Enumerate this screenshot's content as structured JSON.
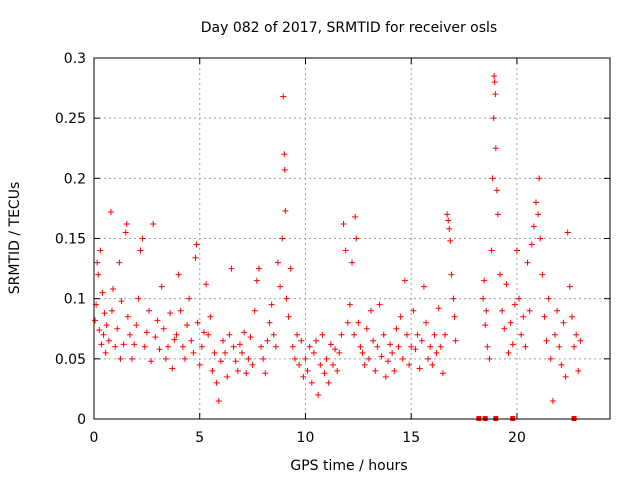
{
  "chart_data": {
    "type": "scatter",
    "title": "Day 082 of 2017, SRMTID for receiver osls",
    "xlabel": "GPS time / hours",
    "ylabel": "SRMTID / TECUs",
    "xlim": [
      0,
      24.4
    ],
    "ylim": [
      0,
      0.3
    ],
    "xticks": [
      0,
      5,
      10,
      15,
      20
    ],
    "xtick_labels": [
      "0",
      "5",
      "10",
      "15",
      "20"
    ],
    "yticks": [
      0,
      0.05,
      0.1,
      0.15,
      0.2,
      0.25,
      0.3
    ],
    "ytick_labels": [
      "0",
      "0.05",
      "0.1",
      "0.15",
      "0.2",
      "0.25",
      "0.3"
    ],
    "grid": true,
    "marker": "+",
    "color": "#ff0000",
    "gap_markers_x": [
      18.2,
      18.5,
      19.0,
      19.8,
      22.7
    ],
    "series": [
      {
        "name": "SRMTID",
        "points": [
          [
            0.05,
            0.082
          ],
          [
            0.1,
            0.095
          ],
          [
            0.15,
            0.13
          ],
          [
            0.2,
            0.12
          ],
          [
            0.25,
            0.074
          ],
          [
            0.3,
            0.14
          ],
          [
            0.35,
            0.062
          ],
          [
            0.4,
            0.105
          ],
          [
            0.45,
            0.07
          ],
          [
            0.5,
            0.088
          ],
          [
            0.55,
            0.055
          ],
          [
            0.6,
            0.078
          ],
          [
            0.7,
            0.065
          ],
          [
            0.8,
            0.172
          ],
          [
            0.85,
            0.09
          ],
          [
            0.9,
            0.108
          ],
          [
            1.0,
            0.06
          ],
          [
            1.1,
            0.075
          ],
          [
            1.2,
            0.13
          ],
          [
            1.25,
            0.05
          ],
          [
            1.3,
            0.098
          ],
          [
            1.4,
            0.062
          ],
          [
            1.5,
            0.155
          ],
          [
            1.55,
            0.162
          ],
          [
            1.6,
            0.085
          ],
          [
            1.7,
            0.07
          ],
          [
            1.8,
            0.05
          ],
          [
            1.9,
            0.062
          ],
          [
            2.0,
            0.078
          ],
          [
            2.1,
            0.1
          ],
          [
            2.2,
            0.14
          ],
          [
            2.3,
            0.15
          ],
          [
            2.4,
            0.06
          ],
          [
            2.5,
            0.072
          ],
          [
            2.6,
            0.09
          ],
          [
            2.7,
            0.048
          ],
          [
            2.8,
            0.162
          ],
          [
            2.9,
            0.068
          ],
          [
            3.0,
            0.082
          ],
          [
            3.1,
            0.058
          ],
          [
            3.2,
            0.11
          ],
          [
            3.3,
            0.075
          ],
          [
            3.4,
            0.05
          ],
          [
            3.5,
            0.06
          ],
          [
            3.6,
            0.088
          ],
          [
            3.7,
            0.042
          ],
          [
            3.8,
            0.066
          ],
          [
            3.9,
            0.07
          ],
          [
            4.0,
            0.12
          ],
          [
            4.1,
            0.09
          ],
          [
            4.2,
            0.06
          ],
          [
            4.3,
            0.05
          ],
          [
            4.4,
            0.078
          ],
          [
            4.5,
            0.1
          ],
          [
            4.6,
            0.065
          ],
          [
            4.7,
            0.055
          ],
          [
            4.8,
            0.134
          ],
          [
            4.85,
            0.145
          ],
          [
            4.9,
            0.08
          ],
          [
            5.0,
            0.045
          ],
          [
            5.1,
            0.06
          ],
          [
            5.2,
            0.072
          ],
          [
            5.3,
            0.112
          ],
          [
            5.4,
            0.07
          ],
          [
            5.5,
            0.085
          ],
          [
            5.6,
            0.04
          ],
          [
            5.7,
            0.055
          ],
          [
            5.8,
            0.03
          ],
          [
            5.9,
            0.015
          ],
          [
            6.0,
            0.048
          ],
          [
            6.1,
            0.065
          ],
          [
            6.2,
            0.055
          ],
          [
            6.3,
            0.035
          ],
          [
            6.4,
            0.07
          ],
          [
            6.5,
            0.125
          ],
          [
            6.6,
            0.06
          ],
          [
            6.7,
            0.048
          ],
          [
            6.8,
            0.04
          ],
          [
            6.9,
            0.062
          ],
          [
            7.0,
            0.055
          ],
          [
            7.1,
            0.072
          ],
          [
            7.2,
            0.038
          ],
          [
            7.3,
            0.05
          ],
          [
            7.4,
            0.068
          ],
          [
            7.5,
            0.045
          ],
          [
            7.6,
            0.09
          ],
          [
            7.7,
            0.115
          ],
          [
            7.8,
            0.125
          ],
          [
            7.9,
            0.06
          ],
          [
            8.0,
            0.05
          ],
          [
            8.1,
            0.038
          ],
          [
            8.2,
            0.065
          ],
          [
            8.3,
            0.08
          ],
          [
            8.4,
            0.095
          ],
          [
            8.5,
            0.07
          ],
          [
            8.6,
            0.06
          ],
          [
            8.7,
            0.13
          ],
          [
            8.8,
            0.11
          ],
          [
            8.9,
            0.15
          ],
          [
            8.95,
            0.268
          ],
          [
            9.0,
            0.22
          ],
          [
            9.02,
            0.207
          ],
          [
            9.05,
            0.173
          ],
          [
            9.1,
            0.1
          ],
          [
            9.2,
            0.085
          ],
          [
            9.3,
            0.125
          ],
          [
            9.4,
            0.06
          ],
          [
            9.5,
            0.05
          ],
          [
            9.6,
            0.07
          ],
          [
            9.7,
            0.045
          ],
          [
            9.8,
            0.065
          ],
          [
            9.9,
            0.035
          ],
          [
            10.0,
            0.05
          ],
          [
            10.1,
            0.04
          ],
          [
            10.2,
            0.06
          ],
          [
            10.3,
            0.03
          ],
          [
            10.4,
            0.055
          ],
          [
            10.5,
            0.065
          ],
          [
            10.6,
            0.02
          ],
          [
            10.7,
            0.045
          ],
          [
            10.8,
            0.07
          ],
          [
            10.9,
            0.038
          ],
          [
            11.0,
            0.05
          ],
          [
            11.1,
            0.03
          ],
          [
            11.2,
            0.062
          ],
          [
            11.3,
            0.045
          ],
          [
            11.4,
            0.058
          ],
          [
            11.5,
            0.04
          ],
          [
            11.6,
            0.055
          ],
          [
            11.7,
            0.07
          ],
          [
            11.8,
            0.162
          ],
          [
            11.9,
            0.14
          ],
          [
            12.0,
            0.08
          ],
          [
            12.1,
            0.095
          ],
          [
            12.2,
            0.13
          ],
          [
            12.3,
            0.07
          ],
          [
            12.35,
            0.168
          ],
          [
            12.4,
            0.15
          ],
          [
            12.5,
            0.08
          ],
          [
            12.6,
            0.06
          ],
          [
            12.7,
            0.055
          ],
          [
            12.8,
            0.045
          ],
          [
            12.9,
            0.075
          ],
          [
            13.0,
            0.05
          ],
          [
            13.1,
            0.09
          ],
          [
            13.2,
            0.065
          ],
          [
            13.3,
            0.04
          ],
          [
            13.4,
            0.06
          ],
          [
            13.5,
            0.095
          ],
          [
            13.6,
            0.052
          ],
          [
            13.7,
            0.07
          ],
          [
            13.8,
            0.035
          ],
          [
            13.9,
            0.048
          ],
          [
            14.0,
            0.062
          ],
          [
            14.1,
            0.055
          ],
          [
            14.2,
            0.04
          ],
          [
            14.3,
            0.075
          ],
          [
            14.4,
            0.06
          ],
          [
            14.5,
            0.085
          ],
          [
            14.6,
            0.05
          ],
          [
            14.7,
            0.115
          ],
          [
            14.8,
            0.07
          ],
          [
            14.9,
            0.045
          ],
          [
            15.0,
            0.06
          ],
          [
            15.1,
            0.09
          ],
          [
            15.2,
            0.058
          ],
          [
            15.3,
            0.07
          ],
          [
            15.4,
            0.042
          ],
          [
            15.5,
            0.065
          ],
          [
            15.6,
            0.11
          ],
          [
            15.7,
            0.08
          ],
          [
            15.8,
            0.05
          ],
          [
            15.9,
            0.06
          ],
          [
            16.0,
            0.045
          ],
          [
            16.1,
            0.07
          ],
          [
            16.2,
            0.055
          ],
          [
            16.3,
            0.092
          ],
          [
            16.4,
            0.06
          ],
          [
            16.5,
            0.038
          ],
          [
            16.6,
            0.07
          ],
          [
            16.7,
            0.17
          ],
          [
            16.75,
            0.165
          ],
          [
            16.8,
            0.158
          ],
          [
            16.85,
            0.148
          ],
          [
            16.9,
            0.12
          ],
          [
            17.0,
            0.1
          ],
          [
            17.05,
            0.085
          ],
          [
            17.1,
            0.065
          ],
          [
            18.4,
            0.1
          ],
          [
            18.45,
            0.115
          ],
          [
            18.5,
            0.078
          ],
          [
            18.55,
            0.09
          ],
          [
            18.6,
            0.06
          ],
          [
            18.7,
            0.05
          ],
          [
            18.8,
            0.14
          ],
          [
            18.85,
            0.2
          ],
          [
            18.9,
            0.25
          ],
          [
            18.92,
            0.285
          ],
          [
            18.95,
            0.28
          ],
          [
            18.98,
            0.27
          ],
          [
            19.0,
            0.225
          ],
          [
            19.05,
            0.19
          ],
          [
            19.1,
            0.17
          ],
          [
            19.2,
            0.12
          ],
          [
            19.3,
            0.09
          ],
          [
            19.4,
            0.075
          ],
          [
            19.5,
            0.112
          ],
          [
            19.6,
            0.055
          ],
          [
            19.7,
            0.08
          ],
          [
            19.8,
            0.062
          ],
          [
            19.9,
            0.095
          ],
          [
            20.0,
            0.14
          ],
          [
            20.1,
            0.1
          ],
          [
            20.2,
            0.07
          ],
          [
            20.3,
            0.085
          ],
          [
            20.4,
            0.06
          ],
          [
            20.5,
            0.13
          ],
          [
            20.6,
            0.09
          ],
          [
            20.7,
            0.145
          ],
          [
            20.8,
            0.16
          ],
          [
            20.9,
            0.18
          ],
          [
            21.0,
            0.17
          ],
          [
            21.05,
            0.2
          ],
          [
            21.1,
            0.15
          ],
          [
            21.2,
            0.12
          ],
          [
            21.3,
            0.085
          ],
          [
            21.4,
            0.065
          ],
          [
            21.5,
            0.1
          ],
          [
            21.6,
            0.05
          ],
          [
            21.7,
            0.015
          ],
          [
            21.8,
            0.07
          ],
          [
            21.9,
            0.09
          ],
          [
            22.0,
            0.06
          ],
          [
            22.1,
            0.045
          ],
          [
            22.2,
            0.08
          ],
          [
            22.3,
            0.035
          ],
          [
            22.4,
            0.155
          ],
          [
            22.5,
            0.11
          ],
          [
            22.6,
            0.085
          ],
          [
            22.7,
            0.06
          ],
          [
            22.8,
            0.07
          ],
          [
            22.9,
            0.04
          ],
          [
            23.0,
            0.065
          ]
        ]
      }
    ]
  }
}
